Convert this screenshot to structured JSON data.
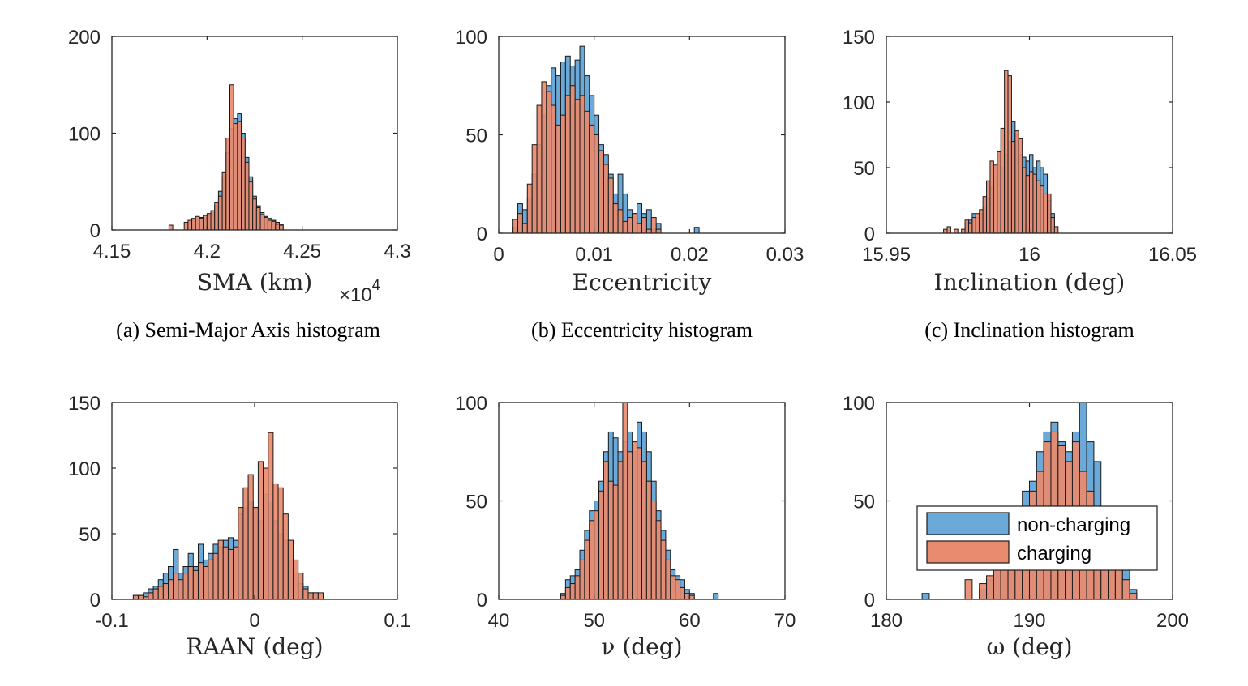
{
  "colors": {
    "non_charging": "#6aa9d8",
    "charging": "#e98b6e",
    "axis": "#262626"
  },
  "legend": {
    "entries": [
      "non-charging",
      "charging"
    ],
    "placement": "inside-lower-left of panel (f)"
  },
  "chart_data": [
    {
      "type": "histogram",
      "caption": "(a)  Semi-Major Axis histogram",
      "xlabel": "SMA (km)",
      "x_multiplier": "×10",
      "x_multiplier_exp": "4",
      "xlim": [
        4.15,
        4.3
      ],
      "ylim": [
        0,
        200
      ],
      "xticks": [
        4.15,
        4.2,
        4.25,
        4.3
      ],
      "xtick_labels": [
        "4.15",
        "4.2",
        "4.25",
        "4.3"
      ],
      "yticks": [
        0,
        100,
        200
      ],
      "ytick_labels": [
        "0",
        "100",
        "200"
      ],
      "bin_start": 4.18,
      "bin_width": 0.002,
      "series": [
        {
          "key": "non_charging",
          "name": "non-charging",
          "values": [
            0,
            0,
            0,
            0,
            0,
            8,
            10,
            11,
            13,
            12,
            15,
            18,
            25,
            40,
            55,
            80,
            105,
            115,
            120,
            100,
            75,
            55,
            35,
            25,
            18,
            14,
            12,
            10,
            8,
            6,
            0,
            0,
            0,
            0,
            0,
            0,
            0
          ]
        },
        {
          "key": "charging",
          "name": "charging",
          "values": [
            5,
            0,
            0,
            0,
            8,
            10,
            12,
            14,
            12,
            15,
            17,
            20,
            28,
            35,
            60,
            95,
            150,
            110,
            112,
            95,
            70,
            50,
            32,
            23,
            16,
            13,
            10,
            9,
            6,
            5,
            0,
            0,
            0,
            0,
            0,
            0,
            0
          ]
        }
      ]
    },
    {
      "type": "histogram",
      "caption": "(b)  Eccentricity histogram",
      "xlabel": "Eccentricity",
      "xlim": [
        0,
        0.03
      ],
      "ylim": [
        0,
        100
      ],
      "xticks": [
        0,
        0.01,
        0.02,
        0.03
      ],
      "xtick_labels": [
        "0",
        "0.01",
        "0.02",
        "0.03"
      ],
      "yticks": [
        0,
        50,
        100
      ],
      "ytick_labels": [
        "0",
        "50",
        "100"
      ],
      "bin_start": 0.0015,
      "bin_width": 0.0005,
      "series": [
        {
          "key": "non_charging",
          "name": "non-charging",
          "values": [
            3,
            15,
            12,
            18,
            30,
            45,
            60,
            75,
            84,
            80,
            87,
            90,
            85,
            88,
            95,
            80,
            70,
            60,
            45,
            40,
            30,
            20,
            30,
            20,
            12,
            10,
            15,
            10,
            12,
            2,
            5,
            0,
            0,
            0,
            0,
            0,
            0,
            0,
            3
          ]
        },
        {
          "key": "charging",
          "name": "charging",
          "values": [
            7,
            10,
            5,
            25,
            45,
            65,
            77,
            72,
            65,
            55,
            60,
            70,
            75,
            68,
            70,
            62,
            55,
            50,
            42,
            35,
            28,
            15,
            12,
            6,
            8,
            10,
            5,
            8,
            2,
            8,
            2,
            0,
            0,
            0,
            0,
            0,
            0,
            0,
            0
          ]
        }
      ]
    },
    {
      "type": "histogram",
      "caption": "(c)  Inclination histogram",
      "xlabel": "Inclination (deg)",
      "xlim": [
        15.95,
        16.05
      ],
      "ylim": [
        0,
        150
      ],
      "xticks": [
        15.95,
        16,
        16.05
      ],
      "xtick_labels": [
        "15.95",
        "16",
        "16.05"
      ],
      "yticks": [
        0,
        50,
        100,
        150
      ],
      "ytick_labels": [
        "0",
        "50",
        "100",
        "150"
      ],
      "bin_start": 15.97,
      "bin_width": 0.00125,
      "series": [
        {
          "key": "non_charging",
          "name": "non-charging",
          "values": [
            0,
            0,
            0,
            0,
            0,
            0,
            8,
            10,
            15,
            12,
            15,
            20,
            27,
            35,
            50,
            60,
            50,
            60,
            70,
            85,
            75,
            60,
            58,
            55,
            60,
            50,
            55,
            50,
            45,
            25,
            15,
            0
          ]
        },
        {
          "key": "charging",
          "name": "charging",
          "values": [
            3,
            5,
            0,
            3,
            0,
            3,
            10,
            8,
            12,
            15,
            18,
            28,
            40,
            55,
            52,
            62,
            80,
            124,
            120,
            70,
            78,
            72,
            50,
            44,
            47,
            45,
            40,
            36,
            30,
            30,
            12,
            5
          ]
        }
      ]
    },
    {
      "type": "histogram",
      "caption": "",
      "xlabel": "RAAN (deg)",
      "xlim": [
        -0.1,
        0.1
      ],
      "ylim": [
        0,
        150
      ],
      "xticks": [
        -0.1,
        0,
        0.1
      ],
      "xtick_labels": [
        "-0.1",
        "0",
        "0.1"
      ],
      "yticks": [
        0,
        50,
        100,
        150
      ],
      "ytick_labels": [
        "0",
        "50",
        "100",
        "150"
      ],
      "bin_start": -0.085,
      "bin_width": 0.0035,
      "series": [
        {
          "key": "non_charging",
          "name": "non-charging",
          "values": [
            3,
            3,
            5,
            8,
            10,
            15,
            20,
            25,
            38,
            20,
            25,
            35,
            25,
            42,
            30,
            35,
            42,
            40,
            45,
            47,
            45,
            65,
            70,
            75,
            70,
            60,
            80,
            75,
            60,
            50,
            45,
            30,
            20,
            12,
            10,
            5,
            5,
            0,
            0,
            0
          ]
        },
        {
          "key": "charging",
          "name": "charging",
          "values": [
            3,
            3,
            2,
            5,
            8,
            10,
            12,
            15,
            20,
            15,
            20,
            25,
            22,
            28,
            25,
            30,
            35,
            45,
            40,
            38,
            40,
            70,
            85,
            95,
            70,
            105,
            100,
            127,
            88,
            85,
            65,
            45,
            30,
            20,
            8,
            5,
            5,
            5,
            0,
            0
          ]
        }
      ]
    },
    {
      "type": "histogram",
      "caption": "",
      "xlabel": "ν (deg)",
      "xlim": [
        40,
        70
      ],
      "ylim": [
        0,
        100
      ],
      "xticks": [
        40,
        50,
        60,
        70
      ],
      "xtick_labels": [
        "40",
        "50",
        "60",
        "70"
      ],
      "yticks": [
        0,
        50,
        100
      ],
      "ytick_labels": [
        "0",
        "50",
        "100"
      ],
      "bin_start": 46.5,
      "bin_width": 0.5,
      "series": [
        {
          "key": "non_charging",
          "name": "non-charging",
          "values": [
            3,
            10,
            12,
            15,
            25,
            35,
            45,
            50,
            60,
            75,
            85,
            82,
            75,
            80,
            85,
            75,
            90,
            85,
            75,
            60,
            45,
            35,
            25,
            15,
            12,
            10,
            5,
            3,
            0,
            0,
            0,
            0,
            3
          ]
        },
        {
          "key": "charging",
          "name": "charging",
          "values": [
            2,
            6,
            8,
            12,
            20,
            30,
            40,
            45,
            55,
            70,
            60,
            58,
            70,
            100,
            75,
            80,
            77,
            70,
            60,
            50,
            40,
            30,
            20,
            12,
            10,
            6,
            3,
            2,
            0,
            0,
            0,
            0,
            0
          ]
        }
      ]
    },
    {
      "type": "histogram",
      "caption": "",
      "xlabel": "ω (deg)",
      "xlim": [
        180,
        200
      ],
      "ylim": [
        0,
        100
      ],
      "xticks": [
        180,
        190,
        200
      ],
      "xtick_labels": [
        "180",
        "190",
        "200"
      ],
      "yticks": [
        0,
        50,
        100
      ],
      "ytick_labels": [
        "0",
        "50",
        "100"
      ],
      "bin_start": 182.5,
      "bin_width": 0.5,
      "series": [
        {
          "key": "non_charging",
          "name": "non-charging",
          "values": [
            3,
            0,
            0,
            0,
            0,
            0,
            0,
            0,
            5,
            10,
            15,
            20,
            30,
            45,
            55,
            60,
            75,
            85,
            90,
            80,
            75,
            85,
            100,
            80,
            70,
            45,
            35,
            20,
            15,
            5
          ]
        },
        {
          "key": "charging",
          "name": "charging",
          "values": [
            0,
            0,
            0,
            0,
            0,
            0,
            10,
            0,
            8,
            12,
            18,
            22,
            28,
            35,
            45,
            55,
            65,
            80,
            85,
            78,
            70,
            80,
            65,
            55,
            45,
            35,
            25,
            15,
            10,
            3
          ]
        }
      ]
    }
  ]
}
